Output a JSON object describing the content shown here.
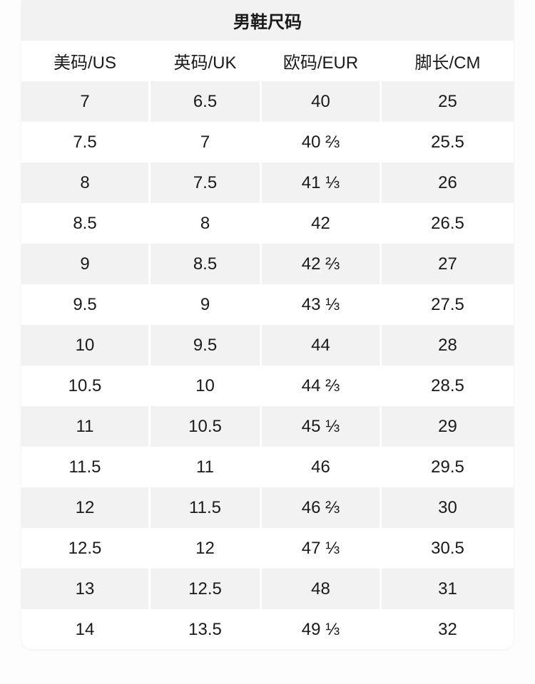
{
  "title": "男鞋尺码",
  "headers": [
    "美码/US",
    "英码/UK",
    "欧码/EUR",
    "脚长/CM"
  ],
  "rows": [
    [
      "7",
      "6.5",
      "40",
      "25"
    ],
    [
      "7.5",
      "7",
      "40 ⅔",
      "25.5"
    ],
    [
      "8",
      "7.5",
      "41 ⅓",
      "26"
    ],
    [
      "8.5",
      "8",
      "42",
      "26.5"
    ],
    [
      "9",
      "8.5",
      "42 ⅔",
      "27"
    ],
    [
      "9.5",
      "9",
      "43 ⅓",
      "27.5"
    ],
    [
      "10",
      "9.5",
      "44",
      "28"
    ],
    [
      "10.5",
      "10",
      "44 ⅔",
      "28.5"
    ],
    [
      "11",
      "10.5",
      "45 ⅓",
      "29"
    ],
    [
      "11.5",
      "11",
      "46",
      "29.5"
    ],
    [
      "12",
      "11.5",
      "46 ⅔",
      "30"
    ],
    [
      "12.5",
      "12",
      "47 ⅓",
      "30.5"
    ],
    [
      "13",
      "12.5",
      "48",
      "31"
    ],
    [
      "14",
      "13.5",
      "49 ⅓",
      "32"
    ]
  ],
  "colors": {
    "shade": "#f2f2f2",
    "text": "#1a1a1a"
  }
}
